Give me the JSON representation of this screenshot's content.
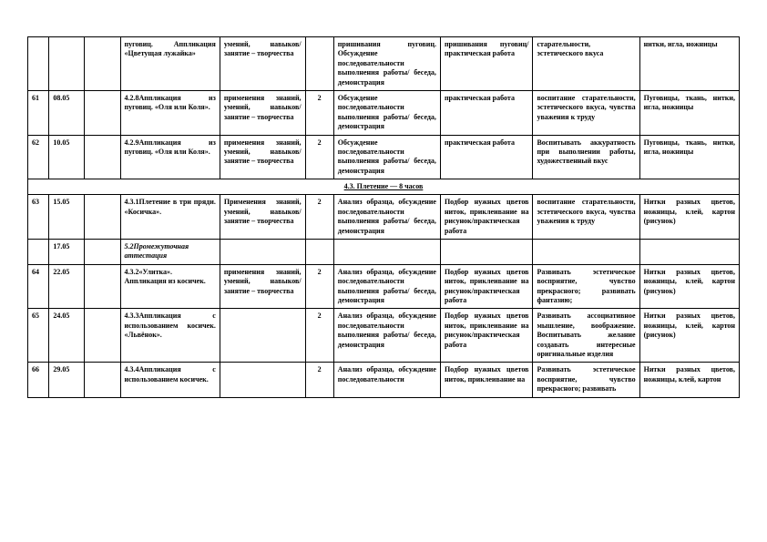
{
  "col_widths": [
    "3%",
    "5%",
    "5%",
    "14%",
    "12%",
    "4%",
    "15%",
    "13%",
    "15%",
    "14%"
  ],
  "rows": [
    {
      "c": [
        "",
        "",
        "",
        "пуговиц. Аппликация «Цветущая лужайка»",
        "умений, навыков/ занятие – творчества",
        "",
        "пришивания пуговиц. Обсуждение последовательности выполнения работы/ беседа, демонстрация",
        "пришивания пуговиц/практическая работа",
        "старательности, эстетического вкуса",
        "нитки, игла, ножницы"
      ]
    },
    {
      "c": [
        "61",
        "08.05",
        "",
        "4.2.8Аппликация из пуговиц. «Оля или Коля».",
        "применения знаний, умений, навыков/ занятие – творчества",
        "2",
        "Обсуждение последовательности выполнения работы/ беседа, демонстрация",
        "практическая работа",
        "воспитание старательности, эстетического вкуса, чувства уважения к труду",
        "Пуговицы, ткань, нитки, игла, ножницы"
      ]
    },
    {
      "c": [
        "62",
        "10.05",
        "",
        "4.2.9Аппликация из пуговиц. «Оля или Коля».",
        "применения знаний, умений, навыков/ занятие – творчества",
        "2",
        "Обсуждение последовательности выполнения работы/ беседа, демонстрация",
        "практическая работа",
        "Воспитывать аккуратность при выполнении работы, художественный вкус",
        "Пуговицы, ткань, нитки, игла, ножницы"
      ]
    }
  ],
  "section": "4.3. Плетение — 8 часов",
  "rows2": [
    {
      "c": [
        "63",
        "15.05",
        "",
        "4.3.1Плетение в три пряди. «Косичка».",
        "Применения знаний, умений, навыков/ занятие – творчества",
        "2",
        "Анализ образца, обсуждение последовательности выполнения работы/ беседа, демонстрация",
        "Подбор нужных цветов ниток, приклеивание на рисунок/практическая работа",
        "воспитание старательности, эстетического вкуса, чувства уважения к труду",
        "Нитки разных цветов, ножницы, клей, картон (рисунок)"
      ]
    },
    {
      "c": [
        "",
        "17.05",
        "",
        "5.2Промежуточная аттестация",
        "",
        "",
        "",
        "",
        "",
        ""
      ],
      "italic": true
    },
    {
      "c": [
        "64",
        "22.05",
        "",
        "4.3.2«Улитка». Аппликация из косичек.",
        "применения знаний, умений, навыков/ занятие – творчества",
        "2",
        "Анализ образца, обсуждение последовательности выполнения работы/ беседа, демонстрация",
        "Подбор нужных цветов ниток, приклеивание на рисунок/практическая работа",
        "Развивать эстетическое восприятие, чувство прекрасного; развивать фантазию;",
        "Нитки разных цветов, ножницы, клей, картон (рисунок)"
      ]
    },
    {
      "c": [
        "65",
        "24.05",
        "",
        "4.3.3Аппликация с использованием косичек. «Львёнок».",
        "",
        "2",
        "Анализ образца, обсуждение последовательности выполнения работы/ беседа, демонстрация",
        "Подбор нужных цветов ниток, приклеивание на рисунок/практическая работа",
        "Развивать ассоциативное мышление, воображение. Воспитывать желание создавать интересные оригинальные изделия",
        "Нитки разных цветов, ножницы, клей, картон (рисунок)"
      ]
    },
    {
      "c": [
        "66",
        "29.05",
        "",
        "4.3.4Аппликация с использованием косичек.",
        "",
        "2",
        "Анализ образца, обсуждение последовательности",
        "Подбор нужных цветов ниток, приклеивание на",
        "Развивать эстетическое восприятие, чувство прекрасного; развивать",
        "Нитки разных цветов, ножницы, клей, картон"
      ]
    }
  ]
}
